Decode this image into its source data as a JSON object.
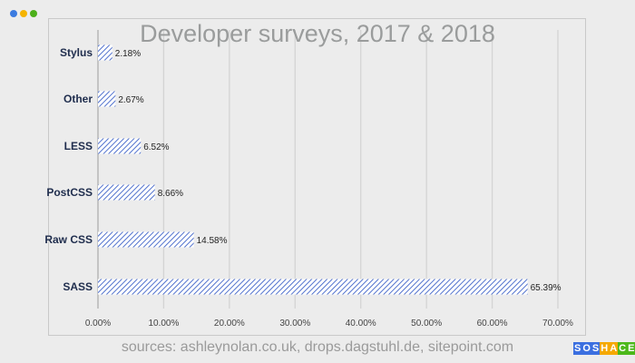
{
  "window": {
    "dot_colors": [
      "#3b7be0",
      "#f5b400",
      "#4caf1a"
    ]
  },
  "chart_data": {
    "type": "bar",
    "orientation": "horizontal",
    "title": "Developer surveys, 2017 & 2018",
    "categories": [
      "Stylus",
      "Other",
      "LESS",
      "PostCSS",
      "Raw CSS",
      "SASS"
    ],
    "values": [
      2.18,
      2.67,
      6.52,
      8.66,
      14.58,
      65.39
    ],
    "data_labels": [
      "2.18%",
      "2.67%",
      "6.52%",
      "8.66%",
      "14.58%",
      "65.39%"
    ],
    "xlim": [
      0,
      70
    ],
    "x_ticks": [
      "0.00%",
      "10.00%",
      "20.00%",
      "30.00%",
      "40.00%",
      "50.00%",
      "60.00%",
      "70.00%"
    ],
    "grid": true,
    "bar_fill": "hatched",
    "bar_color": "#3f63c8",
    "xlabel": "",
    "ylabel": ""
  },
  "footer": {
    "sources": "sources: ashleynolan.co.uk, drops.dagstuhl.de, sitepoint.com"
  },
  "logo": {
    "text": "SOSHACE",
    "colors": [
      "#3b6fe0",
      "#f5a800",
      "#4cb81a"
    ]
  }
}
